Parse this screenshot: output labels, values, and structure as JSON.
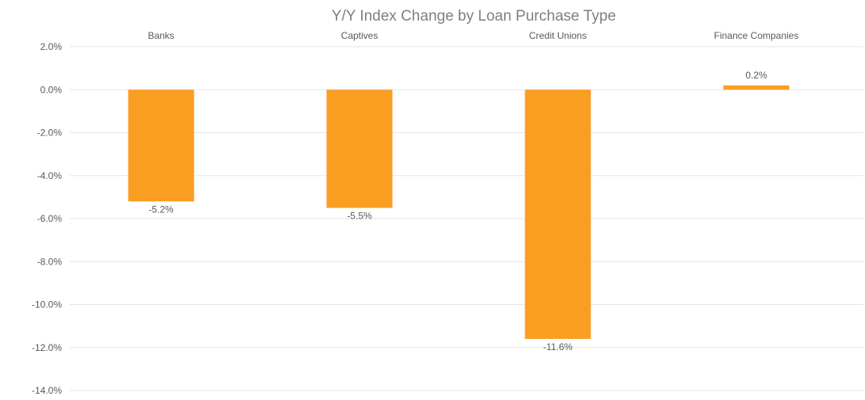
{
  "chart_data": {
    "type": "bar",
    "title": "Y/Y Index Change by Loan Purchase Type",
    "categories": [
      "Banks",
      "Captives",
      "Credit Unions",
      "Finance Companies"
    ],
    "values": [
      -5.2,
      -5.5,
      -11.6,
      0.2
    ],
    "value_labels": [
      "-5.2%",
      "-5.5%",
      "-11.6%",
      "0.2%"
    ],
    "y_ticks": [
      2.0,
      0.0,
      -2.0,
      -4.0,
      -6.0,
      -8.0,
      -10.0,
      -12.0,
      -14.0
    ],
    "y_tick_labels": [
      "2.0%",
      "0.0%",
      "-2.0%",
      "-4.0%",
      "-6.0%",
      "-8.0%",
      "-10.0%",
      "-12.0%",
      "-14.0%"
    ],
    "ylim": [
      -14,
      2
    ],
    "grid": true,
    "category_labels_position": "top",
    "bar_color": "#F99E20",
    "xlabel": "",
    "ylabel": ""
  }
}
